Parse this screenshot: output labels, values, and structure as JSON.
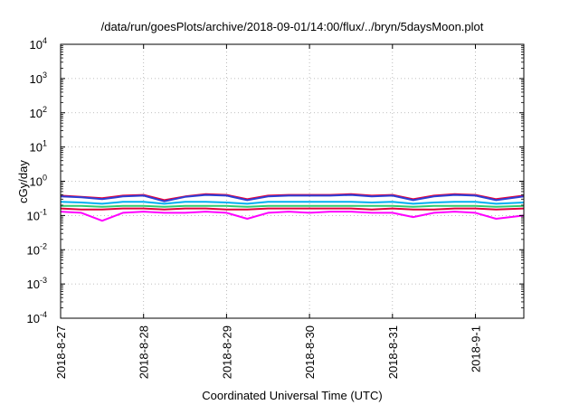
{
  "chart_data": {
    "type": "line",
    "title": "/data/run/goesPlots/archive/2018-09-01/14:00/flux/../bryn/5daysMoon.plot",
    "xlabel": "Coordinated Universal Time (UTC)",
    "ylabel": "cGy/day",
    "x_scale": "time",
    "x_range": [
      "2018-08-27T00:00",
      "2018-09-01T14:00"
    ],
    "x_ticks": [
      {
        "label": "2018-8-27",
        "value": "2018-08-27T00:00"
      },
      {
        "label": "2018-8-28",
        "value": "2018-08-28T00:00"
      },
      {
        "label": "2018-8-29",
        "value": "2018-08-29T00:00"
      },
      {
        "label": "2018-8-30",
        "value": "2018-08-30T00:00"
      },
      {
        "label": "2018-8-31",
        "value": "2018-08-31T00:00"
      },
      {
        "label": "2018-9-1",
        "value": "2018-09-01T00:00"
      }
    ],
    "y_scale": "log",
    "ylim": [
      0.0001,
      10000
    ],
    "y_ticks": [
      {
        "base": "10",
        "exp": "4",
        "value": 10000
      },
      {
        "base": "10",
        "exp": "3",
        "value": 1000
      },
      {
        "base": "10",
        "exp": "2",
        "value": 100
      },
      {
        "base": "10",
        "exp": "1",
        "value": 10
      },
      {
        "base": "10",
        "exp": "0",
        "value": 1
      },
      {
        "base": "10",
        "exp": "-1",
        "value": 0.1
      },
      {
        "base": "10",
        "exp": "-2",
        "value": 0.01
      },
      {
        "base": "10",
        "exp": "-3",
        "value": 0.001
      },
      {
        "base": "10",
        "exp": "-4",
        "value": 0.0001
      }
    ],
    "grid": true,
    "series": [
      {
        "color": "#ff00ff",
        "x": [
          "2018-08-27T00:00",
          "2018-08-27T06:00",
          "2018-08-27T12:00",
          "2018-08-27T18:00",
          "2018-08-28T00:00",
          "2018-08-28T06:00",
          "2018-08-28T12:00",
          "2018-08-28T18:00",
          "2018-08-29T00:00",
          "2018-08-29T06:00",
          "2018-08-29T12:00",
          "2018-08-29T18:00",
          "2018-08-30T00:00",
          "2018-08-30T06:00",
          "2018-08-30T12:00",
          "2018-08-30T18:00",
          "2018-08-31T00:00",
          "2018-08-31T06:00",
          "2018-08-31T12:00",
          "2018-08-31T18:00",
          "2018-09-01T00:00",
          "2018-09-01T06:00",
          "2018-09-01T14:00"
        ],
        "y": [
          0.13,
          0.12,
          0.07,
          0.12,
          0.13,
          0.12,
          0.12,
          0.13,
          0.12,
          0.08,
          0.12,
          0.13,
          0.12,
          0.13,
          0.13,
          0.12,
          0.12,
          0.09,
          0.12,
          0.13,
          0.12,
          0.08,
          0.1
        ]
      },
      {
        "color": "#e0003c",
        "x": [
          "2018-08-27T00:00",
          "2018-08-27T06:00",
          "2018-08-27T12:00",
          "2018-08-27T18:00",
          "2018-08-28T00:00",
          "2018-08-28T06:00",
          "2018-08-28T12:00",
          "2018-08-28T18:00",
          "2018-08-29T00:00",
          "2018-08-29T06:00",
          "2018-08-29T12:00",
          "2018-08-29T18:00",
          "2018-08-30T00:00",
          "2018-08-30T06:00",
          "2018-08-30T12:00",
          "2018-08-30T18:00",
          "2018-08-31T00:00",
          "2018-08-31T06:00",
          "2018-08-31T12:00",
          "2018-08-31T18:00",
          "2018-09-01T00:00",
          "2018-09-01T06:00",
          "2018-09-01T14:00"
        ],
        "y": [
          0.16,
          0.15,
          0.15,
          0.16,
          0.16,
          0.15,
          0.16,
          0.16,
          0.15,
          0.15,
          0.16,
          0.16,
          0.16,
          0.16,
          0.16,
          0.15,
          0.16,
          0.15,
          0.15,
          0.16,
          0.16,
          0.15,
          0.16
        ]
      },
      {
        "color": "#2ecc71",
        "x": [
          "2018-08-27T00:00",
          "2018-08-27T06:00",
          "2018-08-27T12:00",
          "2018-08-27T18:00",
          "2018-08-28T00:00",
          "2018-08-28T06:00",
          "2018-08-28T12:00",
          "2018-08-28T18:00",
          "2018-08-29T00:00",
          "2018-08-29T06:00",
          "2018-08-29T12:00",
          "2018-08-29T18:00",
          "2018-08-30T00:00",
          "2018-08-30T06:00",
          "2018-08-30T12:00",
          "2018-08-30T18:00",
          "2018-08-31T00:00",
          "2018-08-31T06:00",
          "2018-08-31T12:00",
          "2018-08-31T18:00",
          "2018-09-01T00:00",
          "2018-09-01T06:00",
          "2018-09-01T14:00"
        ],
        "y": [
          0.19,
          0.19,
          0.18,
          0.19,
          0.19,
          0.18,
          0.19,
          0.19,
          0.19,
          0.18,
          0.19,
          0.19,
          0.19,
          0.19,
          0.19,
          0.19,
          0.19,
          0.18,
          0.19,
          0.19,
          0.19,
          0.18,
          0.19
        ]
      },
      {
        "color": "#00b0f0",
        "x": [
          "2018-08-27T00:00",
          "2018-08-27T06:00",
          "2018-08-27T12:00",
          "2018-08-27T18:00",
          "2018-08-28T00:00",
          "2018-08-28T06:00",
          "2018-08-28T12:00",
          "2018-08-28T18:00",
          "2018-08-29T00:00",
          "2018-08-29T06:00",
          "2018-08-29T12:00",
          "2018-08-29T18:00",
          "2018-08-30T00:00",
          "2018-08-30T06:00",
          "2018-08-30T12:00",
          "2018-08-30T18:00",
          "2018-08-31T00:00",
          "2018-08-31T06:00",
          "2018-08-31T12:00",
          "2018-08-31T18:00",
          "2018-09-01T00:00",
          "2018-09-01T06:00",
          "2018-09-01T14:00"
        ],
        "y": [
          0.25,
          0.24,
          0.22,
          0.25,
          0.25,
          0.22,
          0.25,
          0.25,
          0.24,
          0.22,
          0.25,
          0.25,
          0.25,
          0.25,
          0.25,
          0.24,
          0.25,
          0.22,
          0.24,
          0.25,
          0.25,
          0.22,
          0.24
        ]
      },
      {
        "color": "#e8003c",
        "x": [
          "2018-08-27T00:00",
          "2018-08-27T06:00",
          "2018-08-27T12:00",
          "2018-08-27T18:00",
          "2018-08-28T00:00",
          "2018-08-28T06:00",
          "2018-08-28T12:00",
          "2018-08-28T18:00",
          "2018-08-29T00:00",
          "2018-08-29T06:00",
          "2018-08-29T12:00",
          "2018-08-29T18:00",
          "2018-08-30T00:00",
          "2018-08-30T06:00",
          "2018-08-30T12:00",
          "2018-08-30T18:00",
          "2018-08-31T00:00",
          "2018-08-31T06:00",
          "2018-08-31T12:00",
          "2018-08-31T18:00",
          "2018-09-01T00:00",
          "2018-09-01T06:00",
          "2018-09-01T14:00"
        ],
        "y": [
          0.38,
          0.35,
          0.32,
          0.38,
          0.4,
          0.28,
          0.36,
          0.42,
          0.4,
          0.3,
          0.38,
          0.4,
          0.4,
          0.4,
          0.42,
          0.38,
          0.4,
          0.3,
          0.38,
          0.42,
          0.4,
          0.3,
          0.38
        ]
      },
      {
        "color": "#2b3fd6",
        "x": [
          "2018-08-27T00:00",
          "2018-08-27T06:00",
          "2018-08-27T12:00",
          "2018-08-27T18:00",
          "2018-08-28T00:00",
          "2018-08-28T06:00",
          "2018-08-28T12:00",
          "2018-08-28T18:00",
          "2018-08-29T00:00",
          "2018-08-29T06:00",
          "2018-08-29T12:00",
          "2018-08-29T18:00",
          "2018-08-30T00:00",
          "2018-08-30T06:00",
          "2018-08-30T12:00",
          "2018-08-30T18:00",
          "2018-08-31T00:00",
          "2018-08-31T06:00",
          "2018-08-31T12:00",
          "2018-08-31T18:00",
          "2018-09-01T00:00",
          "2018-09-01T06:00",
          "2018-09-01T14:00"
        ],
        "y": [
          0.36,
          0.34,
          0.3,
          0.36,
          0.38,
          0.26,
          0.35,
          0.4,
          0.38,
          0.28,
          0.36,
          0.38,
          0.38,
          0.38,
          0.4,
          0.36,
          0.38,
          0.28,
          0.36,
          0.4,
          0.38,
          0.28,
          0.36
        ]
      }
    ]
  }
}
